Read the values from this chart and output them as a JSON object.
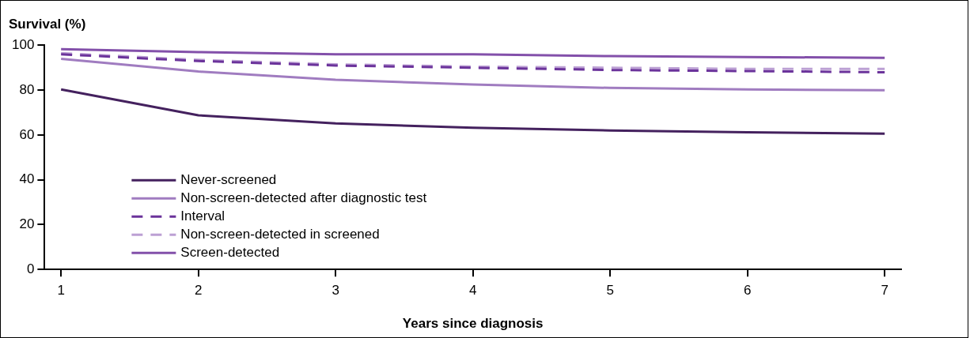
{
  "chart_data": {
    "type": "line",
    "title": "Survival (%)",
    "xlabel": "Years since diagnosis",
    "x": [
      1,
      2,
      3,
      4,
      5,
      6,
      7
    ],
    "xlim": [
      0.88,
      7.12
    ],
    "xticks": [
      1,
      2,
      3,
      4,
      5,
      6,
      7
    ],
    "ylim": [
      0,
      100
    ],
    "yticks": [
      0,
      20,
      40,
      60,
      80,
      100
    ],
    "grid": false,
    "legend": "bottom left",
    "marker": "none",
    "series": [
      {
        "name": "Never-screened",
        "color": "#44215e",
        "line_style": "solid",
        "values": [
          80.3,
          68.8,
          65.2,
          63.2,
          62,
          61.2,
          60.6
        ]
      },
      {
        "name": "Non-screen-detected after diagnostic test",
        "color": "#a07cc0",
        "line_style": "solid",
        "values": [
          94,
          88.3,
          84.6,
          82.5,
          81,
          80.3,
          80
        ]
      },
      {
        "name": "Interval",
        "color": "#6b339b",
        "line_style": "dashed",
        "values": [
          96,
          93,
          91,
          90,
          89,
          88.5,
          88
        ]
      },
      {
        "name": "Non-screen-detected in screened",
        "color": "#bca0d4",
        "line_style": "dashed",
        "values": [
          96.5,
          93.5,
          91.5,
          90.5,
          90,
          89.5,
          89.5
        ]
      },
      {
        "name": "Screen-detected",
        "color": "#8350aa",
        "line_style": "solid",
        "values": [
          98.3,
          97,
          96,
          96,
          95.2,
          94.8,
          94.4
        ]
      }
    ]
  }
}
